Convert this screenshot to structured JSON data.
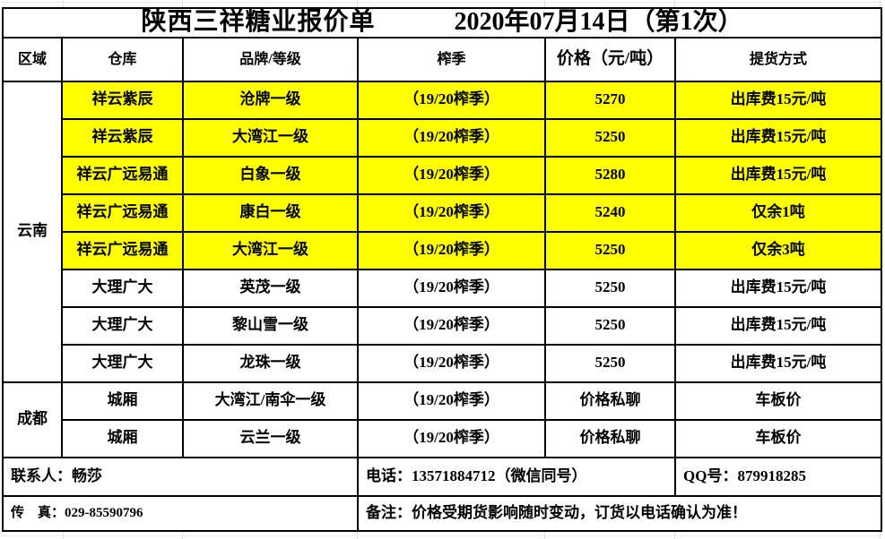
{
  "title": {
    "name": "陕西三祥糖业报价单",
    "date": "2020年07月14日（第1次）"
  },
  "table": {
    "headers": [
      "区域",
      "仓库",
      "品牌/等级",
      "榨季",
      "价格（元/吨）",
      "提货方式"
    ],
    "regions": [
      {
        "label": "云南",
        "rows": 8
      },
      {
        "label": "成都",
        "rows": 2
      }
    ],
    "rows": [
      {
        "warehouse": "祥云紫辰",
        "brand": "沧牌一级",
        "season": "（19/20榨季）",
        "price": "5270",
        "pickup": "出库费15元/吨",
        "highlight": true
      },
      {
        "warehouse": "祥云紫辰",
        "brand": "大湾江一级",
        "season": "（19/20榨季）",
        "price": "5250",
        "pickup": "出库费15元/吨",
        "highlight": true
      },
      {
        "warehouse": "祥云广远易通",
        "brand": "白象一级",
        "season": "（19/20榨季）",
        "price": "5280",
        "pickup": "出库费15元/吨",
        "highlight": true
      },
      {
        "warehouse": "祥云广远易通",
        "brand": "康白一级",
        "season": "（19/20榨季）",
        "price": "5240",
        "pickup": "仅余1吨",
        "highlight": true
      },
      {
        "warehouse": "祥云广远易通",
        "brand": "大湾江一级",
        "season": "（19/20榨季）",
        "price": "5250",
        "pickup": "仅余3吨",
        "highlight": true
      },
      {
        "warehouse": "大理广大",
        "brand": "英茂一级",
        "season": "（19/20榨季）",
        "price": "5250",
        "pickup": "出库费15元/吨",
        "highlight": false
      },
      {
        "warehouse": "大理广大",
        "brand": "黎山雪一级",
        "season": "（19/20榨季）",
        "price": "5250",
        "pickup": "出库费15元/吨",
        "highlight": false
      },
      {
        "warehouse": "大理广大",
        "brand": "龙珠一级",
        "season": "（19/20榨季）",
        "price": "5250",
        "pickup": "出库费15元/吨",
        "highlight": false
      },
      {
        "warehouse": "城厢",
        "brand": "大湾江/南伞一级",
        "season": "（19/20榨季）",
        "price": "价格私聊",
        "pickup": "车板价",
        "highlight": false
      },
      {
        "warehouse": "城厢",
        "brand": "云兰一级",
        "season": "（19/20榨季）",
        "price": "价格私聊",
        "pickup": "车板价",
        "highlight": false
      }
    ]
  },
  "footer": {
    "contact": "联系人：畅莎",
    "phone": "电话：13571884712（微信同号）",
    "qq": "QQ号：879918285",
    "fax": "传　真：029-85590796",
    "note": "备注：价格受期货影响随时变动，订货以电话确认为准！"
  },
  "colors": {
    "highlight": "#FFFF00",
    "border": "#000000",
    "gridline": "#D9E1EC"
  }
}
